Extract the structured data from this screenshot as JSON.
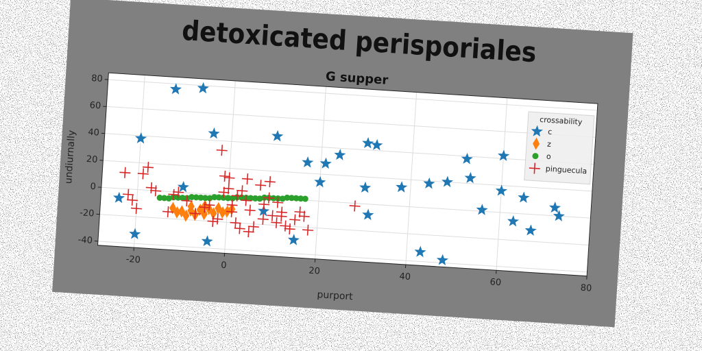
{
  "chart_data": {
    "type": "scatter",
    "title": "detoxicated perisporiales",
    "subtitle": "G supper",
    "x_label": "purport",
    "y_label": "undiurnally",
    "xlim": [
      -28,
      80
    ],
    "ylim": [
      -43,
      85
    ],
    "xticks": [
      -20,
      0,
      20,
      40,
      60,
      80
    ],
    "yticks": [
      -40,
      -20,
      0,
      20,
      40,
      60,
      80
    ],
    "grid": true,
    "legend_title": "crossability",
    "legend_position": "upper right",
    "series": [
      {
        "name": "c",
        "color": "#1f77b4",
        "marker": "star",
        "x": [
          -13,
          -7,
          -20,
          -4,
          10,
          -24,
          -20,
          -10,
          -4,
          8,
          15,
          17,
          21,
          24,
          20,
          30,
          32,
          30,
          31,
          38,
          44,
          48,
          52,
          53,
          60,
          60,
          65,
          56,
          63,
          67,
          72,
          73,
          43,
          48
        ],
        "values": [
          76,
          78,
          38,
          45,
          46,
          -7,
          -33,
          4,
          -35,
          -10,
          -30,
          28,
          28,
          35,
          14,
          45,
          44,
          12,
          -8,
          14,
          18,
          20,
          38,
          24,
          42,
          16,
          12,
          1,
          -6,
          -12,
          6,
          0,
          -33,
          -38
        ]
      },
      {
        "name": "z",
        "color": "#ff7f0e",
        "marker": "thin_diamond",
        "x": [
          -12,
          -11,
          -10,
          -9,
          -8,
          -7,
          -6,
          -5,
          -4,
          -3,
          -2,
          -1,
          0,
          1,
          -8,
          -5
        ],
        "values": [
          -12,
          -15,
          -14,
          -17,
          -13,
          -16,
          -12,
          -15,
          -11,
          -14,
          -10,
          -13,
          -12,
          -10,
          -10,
          -9
        ]
      },
      {
        "name": "o",
        "color": "#2ca02c",
        "marker": "circle",
        "x": [
          -15,
          -14,
          -13,
          -12,
          -11,
          -10,
          -9,
          -8,
          -7,
          -6,
          -5,
          -4,
          -3,
          -2,
          -1,
          0,
          1,
          2,
          3,
          4,
          5,
          6,
          7,
          8,
          9,
          10,
          11,
          12,
          13,
          14,
          15,
          16,
          17
        ],
        "values": [
          -5,
          -5,
          -5,
          -4,
          -4,
          -4,
          -4,
          -3,
          -3,
          -3,
          -3,
          -3,
          -2,
          -2,
          -2,
          -2,
          -2,
          -1,
          -1,
          -1,
          -1,
          -1,
          -1,
          0,
          0,
          0,
          0,
          0,
          1,
          1,
          1,
          1,
          1
        ]
      },
      {
        "name": "pinguecula",
        "color": "#d62728",
        "marker": "plus",
        "x": [
          -23,
          -19,
          -18,
          -17,
          -21,
          -20,
          -22,
          -16,
          -12,
          -11,
          -13,
          -9,
          -7,
          -5,
          -3,
          -2,
          -1,
          -1,
          0,
          1,
          2,
          2,
          3,
          3,
          4,
          4,
          5,
          6,
          7,
          8,
          8,
          9,
          9,
          10,
          11,
          11,
          12,
          12,
          13,
          14,
          15,
          16,
          17,
          18,
          28,
          -2,
          -4,
          0,
          5,
          1
        ],
        "values": [
          12,
          12,
          17,
          2,
          -8,
          -14,
          -4,
          0,
          -2,
          0,
          -15,
          -6,
          -15,
          -10,
          -20,
          -18,
          2,
          14,
          13,
          -7,
          0,
          -20,
          4,
          -24,
          -3,
          13,
          -10,
          -22,
          9,
          -16,
          -5,
          0,
          12,
          -13,
          -3,
          -18,
          -10,
          -13,
          -20,
          -22,
          -15,
          -9,
          -12,
          -22,
          -2,
          33,
          -8,
          5,
          -26,
          -12
        ]
      }
    ]
  }
}
